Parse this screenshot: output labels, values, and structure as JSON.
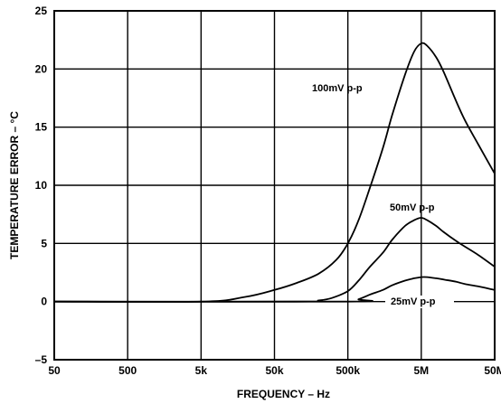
{
  "chart_data": {
    "type": "line",
    "title": "",
    "xlabel": "FREQUENCY – Hz",
    "ylabel": "TEMPERATURE ERROR – °C",
    "x_scale": "log",
    "xlim": [
      50,
      50000000
    ],
    "ylim": [
      -5,
      25
    ],
    "grid": true,
    "x_ticks": [
      {
        "value": 50,
        "label": "50"
      },
      {
        "value": 500,
        "label": "500"
      },
      {
        "value": 5000,
        "label": "5k"
      },
      {
        "value": 50000,
        "label": "50k"
      },
      {
        "value": 500000,
        "label": "500k"
      },
      {
        "value": 5000000,
        "label": "5M"
      },
      {
        "value": 50000000,
        "label": "50M"
      }
    ],
    "y_ticks": [
      {
        "value": -5,
        "label": "–5"
      },
      {
        "value": 0,
        "label": "0"
      },
      {
        "value": 5,
        "label": "5"
      },
      {
        "value": 10,
        "label": "10"
      },
      {
        "value": 15,
        "label": "15"
      },
      {
        "value": 20,
        "label": "20"
      },
      {
        "value": 25,
        "label": "25"
      }
    ],
    "series": [
      {
        "name": "100mV p-p",
        "x": [
          50,
          5000,
          20000,
          50000,
          100000,
          200000,
          350000,
          500000,
          700000,
          1000000,
          1500000,
          2000000,
          3000000,
          4000000,
          5000000,
          6000000,
          8000000,
          10000000,
          15000000,
          20000000,
          30000000,
          50000000
        ],
        "y": [
          0,
          0,
          0.4,
          1.0,
          1.6,
          2.4,
          3.6,
          5.0,
          7.0,
          9.8,
          13.2,
          16.0,
          19.5,
          21.5,
          22.2,
          22.0,
          21.0,
          19.8,
          17.2,
          15.5,
          13.5,
          11.0
        ]
      },
      {
        "name": "50mV p-p",
        "x": [
          50,
          100000,
          200000,
          300000,
          500000,
          700000,
          1000000,
          1500000,
          2000000,
          3000000,
          4000000,
          5000000,
          6000000,
          8000000,
          10000000,
          15000000,
          20000000,
          30000000,
          50000000
        ],
        "y": [
          0,
          0,
          0.1,
          0.3,
          0.9,
          1.8,
          3.0,
          4.2,
          5.3,
          6.5,
          7.0,
          7.2,
          7.0,
          6.5,
          6.0,
          5.2,
          4.7,
          4.0,
          3.0
        ]
      },
      {
        "name": "25mV p-p",
        "x": [
          50,
          500000,
          700000,
          1000000,
          1500000,
          2000000,
          3000000,
          4000000,
          5000000,
          6000000,
          8000000,
          10000000,
          15000000,
          20000000,
          30000000,
          50000000
        ],
        "y": [
          0,
          0,
          0.2,
          0.6,
          1.0,
          1.4,
          1.8,
          2.0,
          2.1,
          2.1,
          2.0,
          1.9,
          1.7,
          1.5,
          1.3,
          1.0
        ]
      }
    ],
    "annotations": [
      {
        "text": "100mV p-p",
        "series": 0
      },
      {
        "text": "50mV p-p",
        "series": 1
      },
      {
        "text": "25mV p-p",
        "series": 2
      }
    ]
  }
}
